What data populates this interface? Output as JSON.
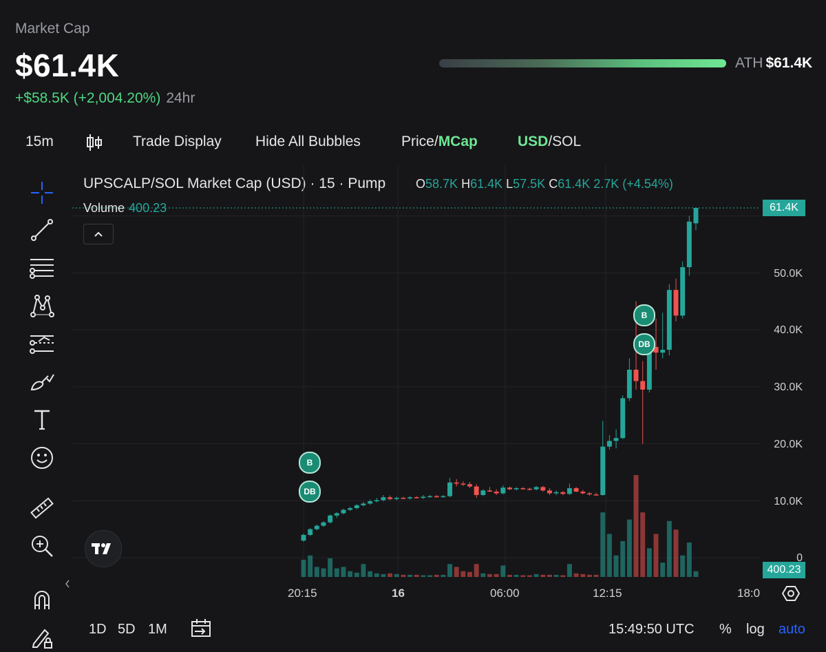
{
  "header": {
    "label": "Market Cap",
    "value": "$61.4K",
    "change": "+$58.5K (+2,004.20%)",
    "period": "24hr",
    "ath_label": "ATH",
    "ath_value": "$61.4K"
  },
  "toolbar": {
    "interval": "15m",
    "trade_display": "Trade Display",
    "hide_bubbles": "Hide All Bubbles",
    "price_label": "Price/",
    "mcap_label": "MCap",
    "usd_label": "USD",
    "sol_label": "/SOL"
  },
  "legend": {
    "title": "UPSCALP/SOL Market Cap (USD) · 15 · Pump",
    "o_key": "O",
    "o_val": "58.7K",
    "h_key": "H",
    "h_val": "61.4K",
    "l_key": "L",
    "l_val": "57.5K",
    "c_key": "C",
    "c_val": "61.4K",
    "change": "2.7K (+4.54%)",
    "volume_label": "Volume",
    "volume_value": "400.23"
  },
  "axes": {
    "y_ticks": [
      "61.4K",
      "50.0K",
      "40.0K",
      "30.0K",
      "20.0K",
      "10.0K",
      "0"
    ],
    "x_ticks": [
      "20:15",
      "16",
      "06:00",
      "12:15",
      "18:0"
    ],
    "price_tag": "61.4K",
    "volume_tag": "400.23"
  },
  "bubbles": [
    "B",
    "DB",
    "B",
    "DB"
  ],
  "bottom": {
    "ranges": [
      "1D",
      "5D",
      "1M"
    ],
    "time": "15:49:50 UTC",
    "percent": "%",
    "log": "log",
    "auto": "auto"
  },
  "colors": {
    "up": "#26a69a",
    "down": "#ef5350",
    "accent_green": "#6fe794",
    "auto_blue": "#2962ff"
  },
  "chart_data": {
    "type": "candlestick",
    "ylim": [
      0,
      61400
    ],
    "y_unit": "USD market cap",
    "candles": [
      {
        "o": 3000,
        "h": 4200,
        "l": 2800,
        "c": 4000
      },
      {
        "o": 4000,
        "h": 5200,
        "l": 3800,
        "c": 5000
      },
      {
        "o": 5000,
        "h": 5800,
        "l": 4800,
        "c": 5600
      },
      {
        "o": 5600,
        "h": 6400,
        "l": 5400,
        "c": 6200
      },
      {
        "o": 6200,
        "h": 7600,
        "l": 6000,
        "c": 7400
      },
      {
        "o": 7400,
        "h": 8000,
        "l": 7000,
        "c": 7800
      },
      {
        "o": 7800,
        "h": 8600,
        "l": 7600,
        "c": 8400
      },
      {
        "o": 8400,
        "h": 8900,
        "l": 8200,
        "c": 8700
      },
      {
        "o": 8700,
        "h": 9400,
        "l": 8500,
        "c": 9200
      },
      {
        "o": 9200,
        "h": 9800,
        "l": 9000,
        "c": 9500
      },
      {
        "o": 9500,
        "h": 10200,
        "l": 9300,
        "c": 9900
      },
      {
        "o": 9900,
        "h": 10500,
        "l": 9700,
        "c": 10100
      },
      {
        "o": 10100,
        "h": 11000,
        "l": 9900,
        "c": 10600
      },
      {
        "o": 10600,
        "h": 10900,
        "l": 10100,
        "c": 10300
      },
      {
        "o": 10300,
        "h": 10700,
        "l": 10100,
        "c": 10500
      },
      {
        "o": 10500,
        "h": 10700,
        "l": 10300,
        "c": 10400
      },
      {
        "o": 10400,
        "h": 10800,
        "l": 10200,
        "c": 10600
      },
      {
        "o": 10600,
        "h": 10800,
        "l": 10400,
        "c": 10500
      },
      {
        "o": 10500,
        "h": 11000,
        "l": 10300,
        "c": 10700
      },
      {
        "o": 10700,
        "h": 11000,
        "l": 10500,
        "c": 10800
      },
      {
        "o": 10800,
        "h": 11000,
        "l": 10500,
        "c": 10700
      },
      {
        "o": 10700,
        "h": 11000,
        "l": 10500,
        "c": 10800
      },
      {
        "o": 10800,
        "h": 14000,
        "l": 10600,
        "c": 13200
      },
      {
        "o": 13200,
        "h": 13800,
        "l": 12500,
        "c": 13000
      },
      {
        "o": 13000,
        "h": 13400,
        "l": 12600,
        "c": 12900
      },
      {
        "o": 12900,
        "h": 13300,
        "l": 12200,
        "c": 12500
      },
      {
        "o": 12500,
        "h": 12900,
        "l": 10500,
        "c": 11000
      },
      {
        "o": 11000,
        "h": 12000,
        "l": 10800,
        "c": 11800
      },
      {
        "o": 11800,
        "h": 12400,
        "l": 11500,
        "c": 11600
      },
      {
        "o": 11600,
        "h": 12000,
        "l": 11000,
        "c": 11300
      },
      {
        "o": 11300,
        "h": 12700,
        "l": 11100,
        "c": 12300
      },
      {
        "o": 12300,
        "h": 12500,
        "l": 11900,
        "c": 12000
      },
      {
        "o": 12000,
        "h": 12400,
        "l": 11800,
        "c": 12200
      },
      {
        "o": 12200,
        "h": 12400,
        "l": 11900,
        "c": 12100
      },
      {
        "o": 12100,
        "h": 12300,
        "l": 11800,
        "c": 12000
      },
      {
        "o": 12000,
        "h": 12600,
        "l": 11800,
        "c": 12400
      },
      {
        "o": 12400,
        "h": 12600,
        "l": 11600,
        "c": 11800
      },
      {
        "o": 11800,
        "h": 12200,
        "l": 11000,
        "c": 11300
      },
      {
        "o": 11300,
        "h": 11800,
        "l": 11000,
        "c": 11500
      },
      {
        "o": 11500,
        "h": 11700,
        "l": 11000,
        "c": 11200
      },
      {
        "o": 11200,
        "h": 13000,
        "l": 11000,
        "c": 12200
      },
      {
        "o": 12200,
        "h": 12400,
        "l": 11500,
        "c": 11600
      },
      {
        "o": 11600,
        "h": 11900,
        "l": 11100,
        "c": 11300
      },
      {
        "o": 11300,
        "h": 11500,
        "l": 10900,
        "c": 11100
      },
      {
        "o": 11100,
        "h": 11400,
        "l": 10900,
        "c": 11000
      },
      {
        "o": 11000,
        "h": 24000,
        "l": 10900,
        "c": 19500
      },
      {
        "o": 19500,
        "h": 21500,
        "l": 19000,
        "c": 20500
      },
      {
        "o": 20500,
        "h": 22500,
        "l": 19200,
        "c": 21000
      },
      {
        "o": 21000,
        "h": 28500,
        "l": 20800,
        "c": 28000
      },
      {
        "o": 28000,
        "h": 35000,
        "l": 27500,
        "c": 33000
      },
      {
        "o": 33000,
        "h": 45000,
        "l": 29500,
        "c": 31000
      },
      {
        "o": 31000,
        "h": 34500,
        "l": 20000,
        "c": 29500
      },
      {
        "o": 29500,
        "h": 38000,
        "l": 29000,
        "c": 37000
      },
      {
        "o": 37000,
        "h": 42000,
        "l": 33000,
        "c": 36000
      },
      {
        "o": 36000,
        "h": 43000,
        "l": 35000,
        "c": 36500
      },
      {
        "o": 36500,
        "h": 48000,
        "l": 35500,
        "c": 47000
      },
      {
        "o": 47000,
        "h": 49000,
        "l": 41500,
        "c": 42500
      },
      {
        "o": 42500,
        "h": 52000,
        "l": 42000,
        "c": 51000
      },
      {
        "o": 51000,
        "h": 60000,
        "l": 49500,
        "c": 59000
      },
      {
        "o": 58700,
        "h": 61400,
        "l": 57500,
        "c": 61400
      }
    ],
    "volume": [
      1200,
      1500,
      700,
      600,
      1300,
      600,
      700,
      400,
      300,
      900,
      400,
      250,
      200,
      250,
      200,
      150,
      150,
      150,
      120,
      120,
      150,
      150,
      900,
      700,
      400,
      350,
      900,
      250,
      200,
      200,
      800,
      150,
      150,
      120,
      120,
      200,
      150,
      150,
      150,
      120,
      900,
      250,
      200,
      150,
      150,
      4500,
      3000,
      1500,
      2500,
      4000,
      7100,
      4500,
      2000,
      3000,
      1000,
      3900,
      3300,
      1500,
      2400,
      400
    ]
  }
}
